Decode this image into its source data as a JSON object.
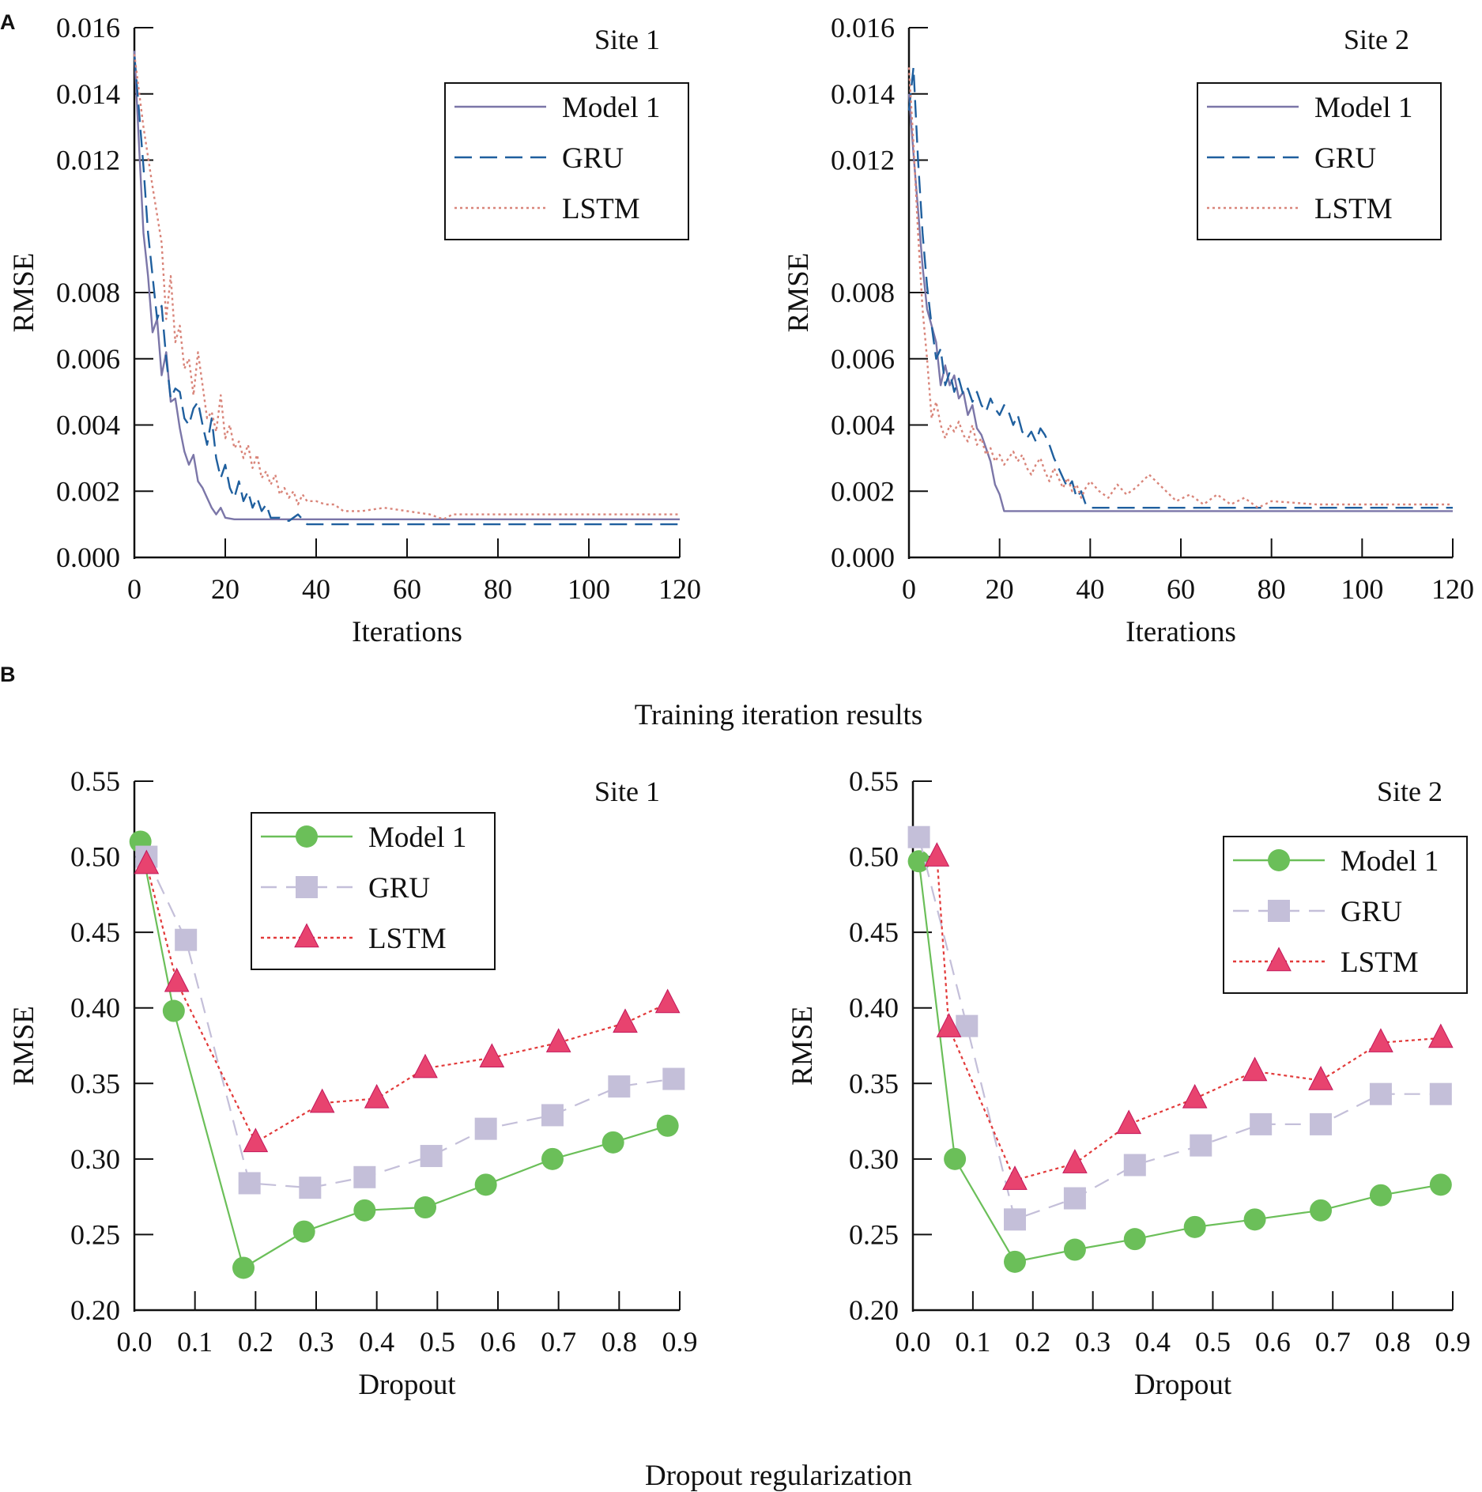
{
  "panels": [
    {
      "letter": "A",
      "caption": "Training iteration results"
    },
    {
      "letter": "B",
      "caption": "Dropout regularization"
    }
  ],
  "styles": {
    "iter_colors": {
      "Model 1": "#7b76a8",
      "GRU": "#1f5f9e",
      "LSTM": "#d9857a"
    },
    "drop_colors": {
      "Model 1": "#6bbf59",
      "GRU": "#c4bfd9",
      "LSTM": "#e8436f"
    },
    "drop_line_colors": {
      "Model 1": "#6bbf59",
      "GRU": "#c4bfd9",
      "LSTM": "#e23a3a"
    }
  },
  "chart_data": [
    {
      "type": "line",
      "site": "Site 1",
      "xlabel": "Iterations",
      "ylabel": "RMSE",
      "xlim": [
        0,
        120
      ],
      "ylim": [
        0,
        0.016
      ],
      "xticks": [
        "0",
        "20",
        "40",
        "60",
        "80",
        "100",
        "120"
      ],
      "yticks": [
        "0.000",
        "0.002",
        "0.004",
        "0.006",
        "0.008",
        "0.012",
        "0.014",
        "0.016"
      ],
      "ytick_values": [
        0,
        0.002,
        0.004,
        0.006,
        0.008,
        0.012,
        0.014,
        0.016
      ],
      "legend_position": "top-right",
      "series": [
        {
          "name": "Model 1",
          "x": [
            0,
            1,
            2,
            3,
            4,
            5,
            6,
            7,
            8,
            9,
            10,
            11,
            12,
            13,
            14,
            15,
            16,
            17,
            18,
            19,
            20,
            22,
            30,
            40,
            50,
            60,
            70,
            80,
            90,
            100,
            110,
            120
          ],
          "values": [
            0.0153,
            0.0125,
            0.0098,
            0.0085,
            0.0068,
            0.0072,
            0.0055,
            0.0062,
            0.0047,
            0.0048,
            0.0039,
            0.0032,
            0.0028,
            0.0031,
            0.0023,
            0.0021,
            0.0018,
            0.0015,
            0.0013,
            0.0015,
            0.0012,
            0.00115,
            0.00115,
            0.00115,
            0.00115,
            0.00115,
            0.00115,
            0.00115,
            0.00115,
            0.00115,
            0.00115,
            0.00115
          ]
        },
        {
          "name": "GRU",
          "x": [
            0,
            1,
            2,
            3,
            4,
            5,
            6,
            7,
            8,
            9,
            10,
            11,
            12,
            13,
            14,
            15,
            16,
            17,
            18,
            19,
            20,
            21,
            22,
            23,
            24,
            25,
            26,
            27,
            28,
            29,
            30,
            32,
            34,
            36,
            38,
            40,
            50,
            60,
            70,
            80,
            90,
            100,
            110,
            120
          ],
          "values": [
            0.0152,
            0.0135,
            0.0118,
            0.0098,
            0.0085,
            0.0072,
            0.0076,
            0.006,
            0.0048,
            0.0051,
            0.005,
            0.0042,
            0.004,
            0.0045,
            0.0047,
            0.004,
            0.0034,
            0.0042,
            0.003,
            0.0024,
            0.0028,
            0.0021,
            0.0018,
            0.0023,
            0.0017,
            0.002,
            0.0015,
            0.0018,
            0.0014,
            0.0016,
            0.0012,
            0.0012,
            0.0011,
            0.0013,
            0.001,
            0.001,
            0.001,
            0.001,
            0.001,
            0.001,
            0.001,
            0.001,
            0.001,
            0.001
          ]
        },
        {
          "name": "LSTM",
          "x": [
            0,
            2,
            4,
            6,
            7,
            8,
            9,
            10,
            11,
            12,
            13,
            14,
            15,
            16,
            17,
            18,
            19,
            20,
            21,
            22,
            23,
            24,
            25,
            26,
            27,
            28,
            29,
            30,
            31,
            32,
            33,
            34,
            35,
            36,
            37,
            38,
            40,
            42,
            44,
            46,
            48,
            50,
            55,
            60,
            65,
            68,
            70,
            75,
            80,
            90,
            100,
            110,
            120
          ],
          "values": [
            0.0152,
            0.013,
            0.0112,
            0.0095,
            0.0072,
            0.0085,
            0.0065,
            0.007,
            0.0057,
            0.006,
            0.0049,
            0.0062,
            0.0052,
            0.0042,
            0.0044,
            0.0038,
            0.0049,
            0.0036,
            0.004,
            0.0033,
            0.0035,
            0.003,
            0.0034,
            0.0027,
            0.0031,
            0.0024,
            0.0026,
            0.0022,
            0.0025,
            0.0019,
            0.0021,
            0.0018,
            0.002,
            0.0016,
            0.0019,
            0.0017,
            0.0017,
            0.0016,
            0.0016,
            0.0014,
            0.0014,
            0.0014,
            0.0015,
            0.0014,
            0.0013,
            0.00115,
            0.0013,
            0.0013,
            0.0013,
            0.0013,
            0.0013,
            0.0013,
            0.0013
          ]
        }
      ]
    },
    {
      "type": "line",
      "site": "Site 2",
      "xlabel": "Iterations",
      "ylabel": "RMSE",
      "xlim": [
        0,
        120
      ],
      "ylim": [
        0,
        0.016
      ],
      "xticks": [
        "0",
        "20",
        "40",
        "60",
        "80",
        "100",
        "120"
      ],
      "yticks": [
        "0.000",
        "0.002",
        "0.004",
        "0.006",
        "0.008",
        "0.012",
        "0.014",
        "0.016"
      ],
      "ytick_values": [
        0,
        0.002,
        0.004,
        0.006,
        0.008,
        0.012,
        0.014,
        0.016
      ],
      "legend_position": "top-right",
      "series": [
        {
          "name": "Model 1",
          "x": [
            0,
            1,
            2,
            3,
            4,
            5,
            6,
            7,
            8,
            9,
            10,
            11,
            12,
            13,
            14,
            15,
            16,
            17,
            18,
            19,
            20,
            21,
            25,
            30,
            40,
            50,
            60,
            70,
            80,
            90,
            100,
            110,
            120
          ],
          "values": [
            0.014,
            0.0122,
            0.0105,
            0.0088,
            0.0075,
            0.007,
            0.0065,
            0.0052,
            0.0058,
            0.0052,
            0.0055,
            0.0048,
            0.005,
            0.0043,
            0.0046,
            0.0039,
            0.0037,
            0.0033,
            0.0029,
            0.0022,
            0.0019,
            0.0014,
            0.0014,
            0.0014,
            0.0014,
            0.0014,
            0.0014,
            0.0014,
            0.0014,
            0.0014,
            0.0014,
            0.0014,
            0.0014
          ]
        },
        {
          "name": "GRU",
          "x": [
            0,
            1,
            2,
            3,
            4,
            5,
            6,
            7,
            8,
            9,
            10,
            11,
            12,
            13,
            14,
            15,
            16,
            17,
            18,
            19,
            20,
            21,
            22,
            23,
            24,
            25,
            26,
            27,
            28,
            29,
            30,
            31,
            32,
            33,
            34,
            35,
            36,
            37,
            38,
            39,
            40,
            42,
            50,
            60,
            70,
            80,
            90,
            100,
            110,
            120
          ],
          "values": [
            0.0135,
            0.0148,
            0.012,
            0.0098,
            0.0082,
            0.007,
            0.006,
            0.0063,
            0.0052,
            0.0056,
            0.005,
            0.0054,
            0.0049,
            0.0051,
            0.0047,
            0.005,
            0.0046,
            0.0044,
            0.0048,
            0.0045,
            0.0043,
            0.0046,
            0.0044,
            0.004,
            0.0043,
            0.0038,
            0.0036,
            0.0038,
            0.0035,
            0.0039,
            0.0037,
            0.0034,
            0.003,
            0.0027,
            0.0024,
            0.0021,
            0.0023,
            0.0018,
            0.002,
            0.0016,
            0.0015,
            0.0015,
            0.0015,
            0.0015,
            0.0015,
            0.0015,
            0.0015,
            0.0015,
            0.0015,
            0.0015
          ]
        },
        {
          "name": "LSTM",
          "x": [
            0,
            1,
            2,
            3,
            4,
            5,
            6,
            7,
            8,
            9,
            10,
            11,
            12,
            13,
            14,
            15,
            16,
            17,
            18,
            19,
            20,
            21,
            22,
            23,
            24,
            25,
            26,
            27,
            28,
            29,
            30,
            31,
            32,
            33,
            34,
            35,
            36,
            37,
            38,
            39,
            40,
            42,
            44,
            46,
            48,
            50,
            53,
            56,
            59,
            62,
            65,
            68,
            71,
            74,
            77,
            80,
            90,
            100,
            110,
            120
          ],
          "values": [
            0.0148,
            0.0125,
            0.0098,
            0.0075,
            0.006,
            0.0042,
            0.0047,
            0.004,
            0.0036,
            0.004,
            0.0038,
            0.0041,
            0.0037,
            0.0035,
            0.004,
            0.0034,
            0.0036,
            0.0031,
            0.0033,
            0.0029,
            0.0031,
            0.0028,
            0.003,
            0.0032,
            0.0029,
            0.0031,
            0.0027,
            0.0025,
            0.0028,
            0.003,
            0.0026,
            0.0023,
            0.0027,
            0.0024,
            0.0021,
            0.0024,
            0.002,
            0.0022,
            0.0018,
            0.0021,
            0.0023,
            0.002,
            0.0018,
            0.0022,
            0.0019,
            0.0021,
            0.0025,
            0.0021,
            0.0017,
            0.0019,
            0.0016,
            0.0019,
            0.0016,
            0.0018,
            0.0015,
            0.0017,
            0.0016,
            0.0016,
            0.0016,
            0.0016
          ]
        }
      ]
    },
    {
      "type": "line",
      "site": "Site 1",
      "xlabel": "Dropout",
      "ylabel": "RMSE",
      "xlim": [
        0,
        0.9
      ],
      "ylim": [
        0.2,
        0.55
      ],
      "xticks": [
        "0.0",
        "0.1",
        "0.2",
        "0.3",
        "0.4",
        "0.5",
        "0.6",
        "0.7",
        "0.8",
        "0.9"
      ],
      "yticks": [
        "0.20",
        "0.25",
        "0.30",
        "0.35",
        "0.40",
        "0.45",
        "0.50",
        "0.55"
      ],
      "ytick_values": [
        0.2,
        0.25,
        0.3,
        0.35,
        0.4,
        0.45,
        0.5,
        0.55
      ],
      "legend_position": "top-left",
      "series": [
        {
          "name": "Model 1",
          "marker": "circle",
          "x": [
            0.01,
            0.065,
            0.18,
            0.28,
            0.38,
            0.48,
            0.58,
            0.69,
            0.79,
            0.88
          ],
          "values": [
            0.51,
            0.398,
            0.228,
            0.252,
            0.266,
            0.268,
            0.283,
            0.3,
            0.311,
            0.322
          ]
        },
        {
          "name": "GRU",
          "marker": "square",
          "x": [
            0.02,
            0.085,
            0.19,
            0.29,
            0.38,
            0.49,
            0.58,
            0.69,
            0.8,
            0.89
          ],
          "values": [
            0.5,
            0.445,
            0.284,
            0.281,
            0.288,
            0.302,
            0.32,
            0.329,
            0.348,
            0.353
          ]
        },
        {
          "name": "LSTM",
          "marker": "triangle",
          "x": [
            0.02,
            0.07,
            0.2,
            0.31,
            0.4,
            0.48,
            0.59,
            0.7,
            0.81,
            0.88
          ],
          "values": [
            0.495,
            0.417,
            0.311,
            0.337,
            0.34,
            0.36,
            0.367,
            0.377,
            0.39,
            0.403
          ]
        }
      ]
    },
    {
      "type": "line",
      "site": "Site 2",
      "xlabel": "Dropout",
      "ylabel": "RMSE",
      "xlim": [
        0,
        0.9
      ],
      "ylim": [
        0.2,
        0.55
      ],
      "xticks": [
        "0.0",
        "0.1",
        "0.2",
        "0.3",
        "0.4",
        "0.5",
        "0.6",
        "0.7",
        "0.8",
        "0.9"
      ],
      "yticks": [
        "0.20",
        "0.25",
        "0.30",
        "0.35",
        "0.40",
        "0.45",
        "0.50",
        "0.55"
      ],
      "ytick_values": [
        0.2,
        0.25,
        0.3,
        0.35,
        0.4,
        0.45,
        0.5,
        0.55
      ],
      "legend_position": "top-right",
      "series": [
        {
          "name": "Model 1",
          "marker": "circle",
          "x": [
            0.01,
            0.07,
            0.17,
            0.27,
            0.37,
            0.47,
            0.57,
            0.68,
            0.78,
            0.88
          ],
          "values": [
            0.497,
            0.3,
            0.232,
            0.24,
            0.247,
            0.255,
            0.26,
            0.266,
            0.276,
            0.283
          ]
        },
        {
          "name": "GRU",
          "marker": "square",
          "x": [
            0.01,
            0.09,
            0.17,
            0.27,
            0.37,
            0.48,
            0.58,
            0.68,
            0.78,
            0.88
          ],
          "values": [
            0.513,
            0.388,
            0.26,
            0.274,
            0.296,
            0.309,
            0.323,
            0.323,
            0.343,
            0.343
          ]
        },
        {
          "name": "LSTM",
          "marker": "triangle",
          "x": [
            0.04,
            0.06,
            0.17,
            0.27,
            0.36,
            0.47,
            0.57,
            0.68,
            0.78,
            0.88
          ],
          "values": [
            0.5,
            0.387,
            0.286,
            0.297,
            0.323,
            0.34,
            0.358,
            0.352,
            0.377,
            0.38
          ]
        }
      ]
    }
  ]
}
